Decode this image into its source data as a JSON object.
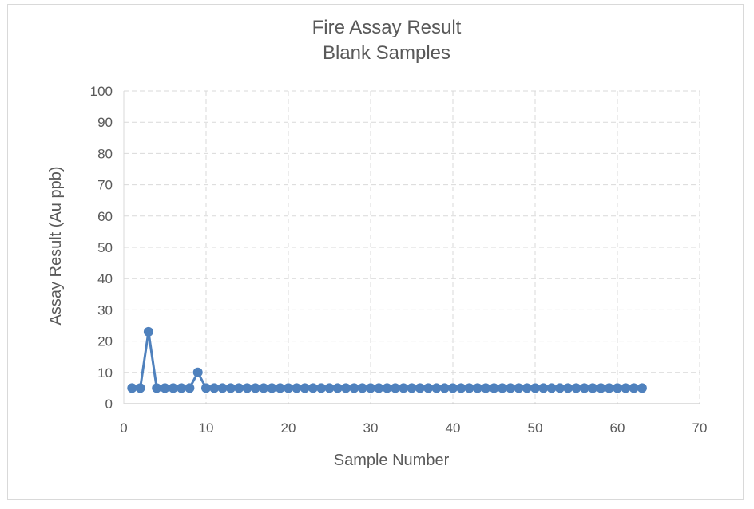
{
  "chart_data": {
    "type": "scatter",
    "title": "Fire Assay Result",
    "subtitle": "Blank Samples",
    "xlabel": "Sample Number",
    "ylabel": "Assay Result (Au ppb)",
    "xlim": [
      0,
      70
    ],
    "ylim": [
      0,
      100
    ],
    "x_ticks": [
      0,
      10,
      20,
      30,
      40,
      50,
      60,
      70
    ],
    "y_ticks": [
      0,
      10,
      20,
      30,
      40,
      50,
      60,
      70,
      80,
      90,
      100
    ],
    "grid": true,
    "legend": "none",
    "series_color": "#4f81bd",
    "grid_color": "#d9d9d9",
    "series": [
      {
        "x": [
          1,
          2,
          3,
          4,
          5,
          6,
          7,
          8,
          9,
          10,
          11,
          12,
          13,
          14,
          15,
          16,
          17,
          18,
          19,
          20,
          21,
          22,
          23,
          24,
          25,
          26,
          27,
          28,
          29,
          30,
          31,
          32,
          33,
          34,
          35,
          36,
          37,
          38,
          39,
          40,
          41,
          42,
          43,
          44,
          45,
          46,
          47,
          48,
          49,
          50,
          51,
          52,
          53,
          54,
          55,
          56,
          57,
          58,
          59,
          60,
          61,
          62,
          63
        ],
        "y": [
          5,
          5,
          23,
          5,
          5,
          5,
          5,
          5,
          10,
          5,
          5,
          5,
          5,
          5,
          5,
          5,
          5,
          5,
          5,
          5,
          5,
          5,
          5,
          5,
          5,
          5,
          5,
          5,
          5,
          5,
          5,
          5,
          5,
          5,
          5,
          5,
          5,
          5,
          5,
          5,
          5,
          5,
          5,
          5,
          5,
          5,
          5,
          5,
          5,
          5,
          5,
          5,
          5,
          5,
          5,
          5,
          5,
          5,
          5,
          5,
          5,
          5,
          5
        ]
      }
    ]
  }
}
